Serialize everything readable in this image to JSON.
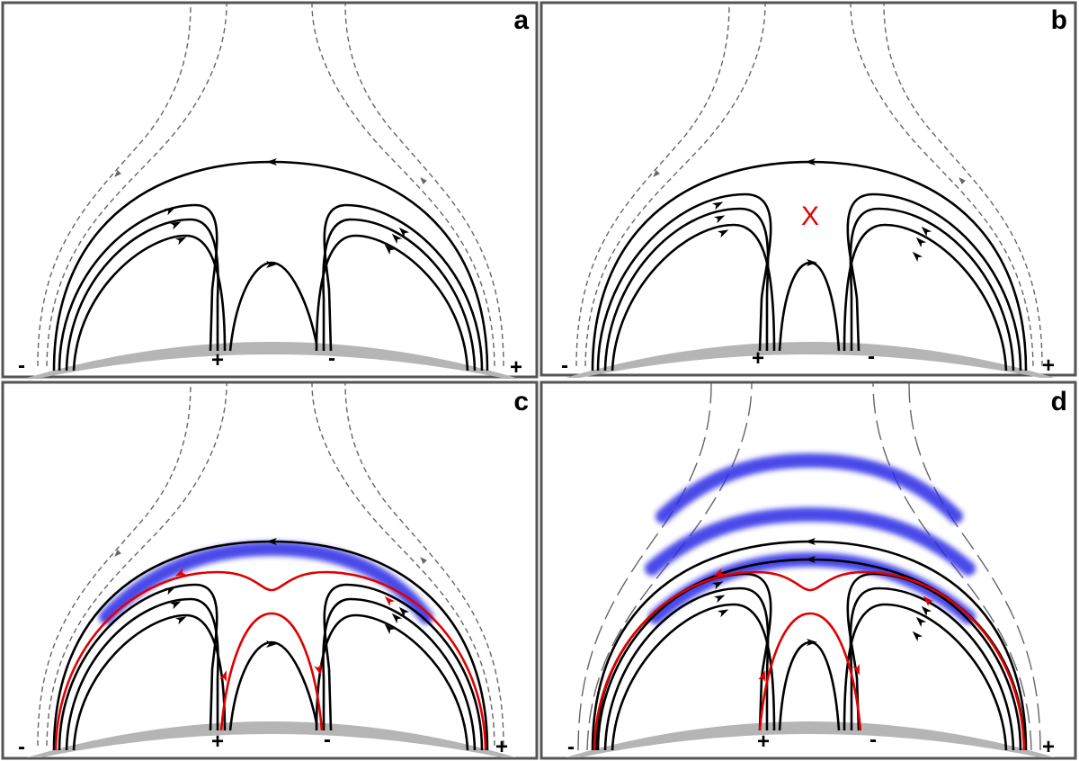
{
  "panels": [
    {
      "label": "a",
      "polarity": [
        "-",
        "+",
        "-",
        "+"
      ]
    },
    {
      "label": "b",
      "marker": "X",
      "polarity": [
        "-",
        "+",
        "-",
        "+"
      ]
    },
    {
      "label": "c",
      "polarity": [
        "-",
        "+",
        "-",
        "+"
      ]
    },
    {
      "label": "d",
      "polarity": [
        "-",
        "+",
        "-",
        "+"
      ]
    }
  ]
}
